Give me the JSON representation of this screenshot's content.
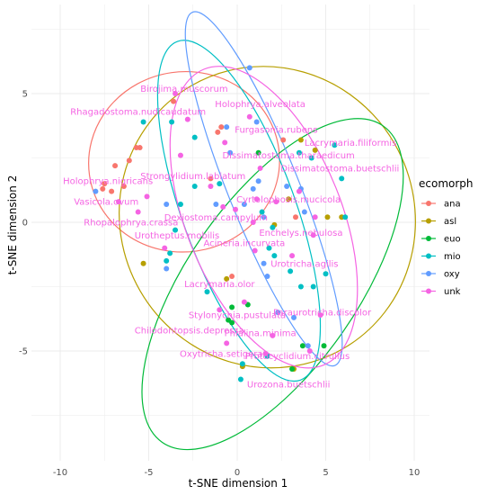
{
  "chart_data": {
    "type": "scatter",
    "title": "",
    "xlabel": "t-SNE dimension 1",
    "ylabel": "t-SNE dimension 2",
    "xlim": [
      -12,
      11
    ],
    "ylim": [
      -9.4,
      8
    ],
    "xticks": [
      -10,
      -5,
      0,
      5,
      10
    ],
    "yticks": [
      -5,
      0,
      5
    ],
    "grid": true,
    "legend": {
      "title": "ecomorph",
      "placement": "right",
      "entries": [
        "ana",
        "asl",
        "euo",
        "mio",
        "oxy",
        "unk"
      ]
    },
    "colors": {
      "ana": "#F8766D",
      "asl": "#B79F00",
      "euo": "#00BA38",
      "mio": "#00BFC4",
      "oxy": "#619CFF",
      "unk": "#F564E3"
    },
    "ellipses": [
      {
        "group": "ana",
        "cx": -3.0,
        "cy": 2.35,
        "rx": 5.4,
        "ry": 3.5,
        "angle": 8
      },
      {
        "group": "asl",
        "cx": 1.7,
        "cy": 0.2,
        "rx": 8.3,
        "ry": 5.9,
        "angle": 30
      },
      {
        "group": "euo",
        "cx": 2.0,
        "cy": -2.4,
        "rx": 4.8,
        "ry": 7.5,
        "angle": -35
      },
      {
        "group": "mio",
        "cx": 0.1,
        "cy": 0.45,
        "rx": 3.2,
        "ry": 7.0,
        "angle": 20
      },
      {
        "group": "oxy",
        "cx": 1.5,
        "cy": 1.3,
        "rx": 2.0,
        "ry": 7.4,
        "angle": 22
      },
      {
        "group": "unk",
        "cx": 1.5,
        "cy": 0.2,
        "rx": 4.4,
        "ry": 6.2,
        "angle": 22
      }
    ],
    "points": [
      {
        "x": -6.9,
        "y": 2.2,
        "group": "ana"
      },
      {
        "x": -6.1,
        "y": 2.4,
        "group": "ana"
      },
      {
        "x": -5.5,
        "y": 2.9,
        "group": "ana"
      },
      {
        "x": -5.7,
        "y": 2.9,
        "group": "ana"
      },
      {
        "x": -6.4,
        "y": 1.4,
        "group": "ana"
      },
      {
        "x": -7.5,
        "y": 1.5,
        "group": "ana"
      },
      {
        "x": -7.1,
        "y": 1.2,
        "group": "ana"
      },
      {
        "x": -7.6,
        "y": 1.3,
        "group": "ana"
      },
      {
        "x": -3.6,
        "y": 4.7,
        "group": "ana"
      },
      {
        "x": -0.9,
        "y": 3.7,
        "group": "ana"
      },
      {
        "x": -1.1,
        "y": 3.5,
        "group": "ana"
      },
      {
        "x": -1.5,
        "y": 1.7,
        "group": "ana"
      },
      {
        "x": -0.3,
        "y": -2.1,
        "group": "ana"
      },
      {
        "x": 2.6,
        "y": 3.2,
        "group": "ana"
      },
      {
        "x": 3.3,
        "y": 0.2,
        "group": "ana"
      },
      {
        "x": -5.3,
        "y": -1.6,
        "group": "asl"
      },
      {
        "x": 2.1,
        "y": -0.1,
        "group": "asl"
      },
      {
        "x": 2.9,
        "y": 0.9,
        "group": "asl"
      },
      {
        "x": 3.6,
        "y": 3.2,
        "group": "asl"
      },
      {
        "x": 4.4,
        "y": 2.8,
        "group": "asl"
      },
      {
        "x": 5.1,
        "y": 0.2,
        "group": "asl"
      },
      {
        "x": 5.9,
        "y": 0.2,
        "group": "asl"
      },
      {
        "x": 3.2,
        "y": -5.7,
        "group": "asl"
      },
      {
        "x": 0.3,
        "y": -5.6,
        "group": "asl"
      },
      {
        "x": -0.6,
        "y": -2.2,
        "group": "asl"
      },
      {
        "x": -0.3,
        "y": -3.3,
        "group": "euo"
      },
      {
        "x": -0.5,
        "y": -3.8,
        "group": "euo"
      },
      {
        "x": -0.3,
        "y": -3.9,
        "group": "euo"
      },
      {
        "x": 0.6,
        "y": -3.2,
        "group": "euo"
      },
      {
        "x": 4.9,
        "y": -4.8,
        "group": "euo"
      },
      {
        "x": 3.7,
        "y": -4.8,
        "group": "euo"
      },
      {
        "x": 3.1,
        "y": -5.7,
        "group": "euo"
      },
      {
        "x": 1.2,
        "y": 2.7,
        "group": "euo"
      },
      {
        "x": -5.3,
        "y": 3.9,
        "group": "mio"
      },
      {
        "x": -3.7,
        "y": 3.9,
        "group": "mio"
      },
      {
        "x": -2.4,
        "y": 3.3,
        "group": "mio"
      },
      {
        "x": -2.4,
        "y": 1.4,
        "group": "mio"
      },
      {
        "x": -1.0,
        "y": 1.5,
        "group": "mio"
      },
      {
        "x": -3.2,
        "y": 0.7,
        "group": "mio"
      },
      {
        "x": -3.5,
        "y": -0.3,
        "group": "mio"
      },
      {
        "x": -3.8,
        "y": -1.2,
        "group": "mio"
      },
      {
        "x": -4.0,
        "y": -1.5,
        "group": "mio"
      },
      {
        "x": -1.7,
        "y": -2.7,
        "group": "mio"
      },
      {
        "x": 2.0,
        "y": -0.2,
        "group": "mio"
      },
      {
        "x": 1.4,
        "y": 0.4,
        "group": "mio"
      },
      {
        "x": 2.1,
        "y": -1.3,
        "group": "mio"
      },
      {
        "x": 3.5,
        "y": 2.7,
        "group": "mio"
      },
      {
        "x": 4.2,
        "y": 2.5,
        "group": "mio"
      },
      {
        "x": 5.5,
        "y": 3.0,
        "group": "mio"
      },
      {
        "x": 5.9,
        "y": 1.7,
        "group": "mio"
      },
      {
        "x": 6.1,
        "y": 0.2,
        "group": "mio"
      },
      {
        "x": 1.8,
        "y": -1.0,
        "group": "mio"
      },
      {
        "x": 3.0,
        "y": -1.9,
        "group": "mio"
      },
      {
        "x": 5.0,
        "y": -2.0,
        "group": "mio"
      },
      {
        "x": 4.3,
        "y": -2.5,
        "group": "mio"
      },
      {
        "x": 3.6,
        "y": -2.5,
        "group": "mio"
      },
      {
        "x": 0.3,
        "y": -5.5,
        "group": "mio"
      },
      {
        "x": 1.7,
        "y": -5.2,
        "group": "mio"
      },
      {
        "x": 0.2,
        "y": -6.1,
        "group": "mio"
      },
      {
        "x": -0.6,
        "y": 3.7,
        "group": "oxy"
      },
      {
        "x": 1.1,
        "y": 3.9,
        "group": "oxy"
      },
      {
        "x": 1.2,
        "y": 1.6,
        "group": "oxy"
      },
      {
        "x": 0.9,
        "y": 1.3,
        "group": "oxy"
      },
      {
        "x": 0.4,
        "y": 0.7,
        "group": "oxy"
      },
      {
        "x": 1.5,
        "y": 0.2,
        "group": "oxy"
      },
      {
        "x": 2.8,
        "y": 1.4,
        "group": "oxy"
      },
      {
        "x": 3.6,
        "y": 1.3,
        "group": "oxy"
      },
      {
        "x": 1.5,
        "y": -1.6,
        "group": "oxy"
      },
      {
        "x": 1.7,
        "y": -2.1,
        "group": "oxy"
      },
      {
        "x": 2.3,
        "y": -3.5,
        "group": "oxy"
      },
      {
        "x": 3.2,
        "y": -3.7,
        "group": "oxy"
      },
      {
        "x": -4.0,
        "y": 0.7,
        "group": "oxy"
      },
      {
        "x": -8.0,
        "y": 1.2,
        "group": "oxy"
      },
      {
        "x": -1.2,
        "y": 0.7,
        "group": "oxy"
      },
      {
        "x": -4.0,
        "y": -1.8,
        "group": "oxy"
      },
      {
        "x": 4.0,
        "y": -4.8,
        "group": "oxy"
      },
      {
        "x": -0.4,
        "y": 2.7,
        "group": "oxy"
      },
      {
        "x": 0.7,
        "y": 6.0,
        "group": "oxy"
      },
      {
        "x": 3.8,
        "y": 0.4,
        "group": "oxy"
      },
      {
        "x": -3.5,
        "y": 5.0,
        "group": "unk"
      },
      {
        "x": -2.8,
        "y": 4.0,
        "group": "unk"
      },
      {
        "x": -3.2,
        "y": 2.6,
        "group": "unk"
      },
      {
        "x": -1.5,
        "y": 1.4,
        "group": "unk"
      },
      {
        "x": -5.6,
        "y": 0.4,
        "group": "unk"
      },
      {
        "x": -6.7,
        "y": 0.8,
        "group": "unk"
      },
      {
        "x": -5.1,
        "y": 1.0,
        "group": "unk"
      },
      {
        "x": -4.1,
        "y": -1.0,
        "group": "unk"
      },
      {
        "x": -0.7,
        "y": 3.1,
        "group": "unk"
      },
      {
        "x": -0.8,
        "y": 0.6,
        "group": "unk"
      },
      {
        "x": -0.1,
        "y": 0.5,
        "group": "unk"
      },
      {
        "x": 1.1,
        "y": 0.9,
        "group": "unk"
      },
      {
        "x": 0.9,
        "y": 0.0,
        "group": "unk"
      },
      {
        "x": 2.2,
        "y": 0.8,
        "group": "unk"
      },
      {
        "x": 3.5,
        "y": 1.2,
        "group": "unk"
      },
      {
        "x": 4.4,
        "y": 0.2,
        "group": "unk"
      },
      {
        "x": 4.3,
        "y": -0.5,
        "group": "unk"
      },
      {
        "x": 3.1,
        "y": -1.3,
        "group": "unk"
      },
      {
        "x": 4.7,
        "y": -3.6,
        "group": "unk"
      },
      {
        "x": 0.4,
        "y": -3.1,
        "group": "unk"
      },
      {
        "x": -1.0,
        "y": -3.4,
        "group": "unk"
      },
      {
        "x": -0.6,
        "y": -4.7,
        "group": "unk"
      },
      {
        "x": 2.0,
        "y": -4.4,
        "group": "unk"
      },
      {
        "x": 1.6,
        "y": -5.1,
        "group": "unk"
      },
      {
        "x": 0.7,
        "y": 4.1,
        "group": "unk"
      },
      {
        "x": 1.3,
        "y": 2.1,
        "group": "unk"
      },
      {
        "x": 4.1,
        "y": -5.0,
        "group": "unk"
      },
      {
        "x": 1.0,
        "y": -1.1,
        "group": "unk"
      }
    ],
    "annotations": [
      {
        "text": "Birojima.muscorum",
        "x": -3.0,
        "y": 5.2
      },
      {
        "text": "Holophrya.alveolata",
        "x": 1.3,
        "y": 4.6
      },
      {
        "text": "Rhagadostoma.nudicaudatum",
        "x": -5.6,
        "y": 4.3
      },
      {
        "text": "Furgasonia.rubens",
        "x": 2.2,
        "y": 3.6
      },
      {
        "text": "Lacrymaria.filiformis",
        "x": 6.4,
        "y": 3.1
      },
      {
        "text": "Dissimatostoma.tharaedicum",
        "x": 2.9,
        "y": 2.6
      },
      {
        "text": "Dissimatostoma.buetschlii",
        "x": 5.8,
        "y": 2.1
      },
      {
        "text": "Strongylidium.labiatum",
        "x": -2.5,
        "y": 1.8
      },
      {
        "text": "Holophrya.nigricans",
        "x": -7.3,
        "y": 1.6
      },
      {
        "text": "Cyrtolophosis.mucicola",
        "x": 2.9,
        "y": 0.9
      },
      {
        "text": "Vasicola.ovum",
        "x": -7.4,
        "y": 0.8
      },
      {
        "text": "Dexiostoma.campylum",
        "x": -1.2,
        "y": 0.2
      },
      {
        "text": "Rhopalophrya.crassa",
        "x": -6.0,
        "y": 0.0
      },
      {
        "text": "Enchelys.nebulosa",
        "x": 3.6,
        "y": -0.4
      },
      {
        "text": "Urotheptus.mobilis",
        "x": -3.4,
        "y": -0.5
      },
      {
        "text": "Acineria.incurvata",
        "x": 0.4,
        "y": -0.8
      },
      {
        "text": "Urotricha.agilis",
        "x": 3.8,
        "y": -1.6
      },
      {
        "text": "Lacrymaria.olor",
        "x": -1.0,
        "y": -2.4
      },
      {
        "text": "Stylonychia.pustulata",
        "x": 0.0,
        "y": -3.6
      },
      {
        "text": "Paraurotricha.discolor",
        "x": 4.8,
        "y": -3.5
      },
      {
        "text": "Chilodontopsis.depressa",
        "x": -2.7,
        "y": -4.2
      },
      {
        "text": "Phialina.minima",
        "x": 1.3,
        "y": -4.3
      },
      {
        "text": "Oxytricha.setigera",
        "x": -0.9,
        "y": -5.1
      },
      {
        "text": "Protocyclidium.citrullus",
        "x": 3.4,
        "y": -5.2
      },
      {
        "text": "Urozona.buetschlii",
        "x": 2.9,
        "y": -6.3
      }
    ]
  }
}
